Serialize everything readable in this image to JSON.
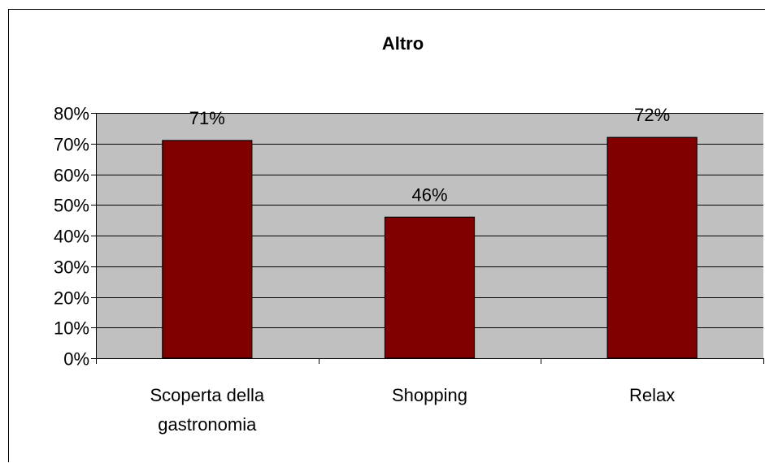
{
  "chart_data": {
    "type": "bar",
    "title": "Altro",
    "xlabel": "",
    "ylabel": "",
    "categories": [
      [
        "Scoperta della",
        "gastronomia"
      ],
      [
        "Shopping"
      ],
      [
        "Relax"
      ]
    ],
    "values": [
      0.71,
      0.46,
      0.72
    ],
    "data_labels": [
      "71%",
      "46%",
      "72%"
    ],
    "ylim": [
      0,
      0.8
    ],
    "yticks": [
      0,
      0.1,
      0.2,
      0.3,
      0.4,
      0.5,
      0.6,
      0.7,
      0.8
    ],
    "ytick_labels": [
      "0%",
      "10%",
      "20%",
      "30%",
      "40%",
      "50%",
      "60%",
      "70%",
      "80%"
    ],
    "grid": true,
    "legend": "none",
    "colors": {
      "bar": "#800000",
      "plot_background": "#c0c0c0",
      "gridline": "#000000"
    }
  }
}
